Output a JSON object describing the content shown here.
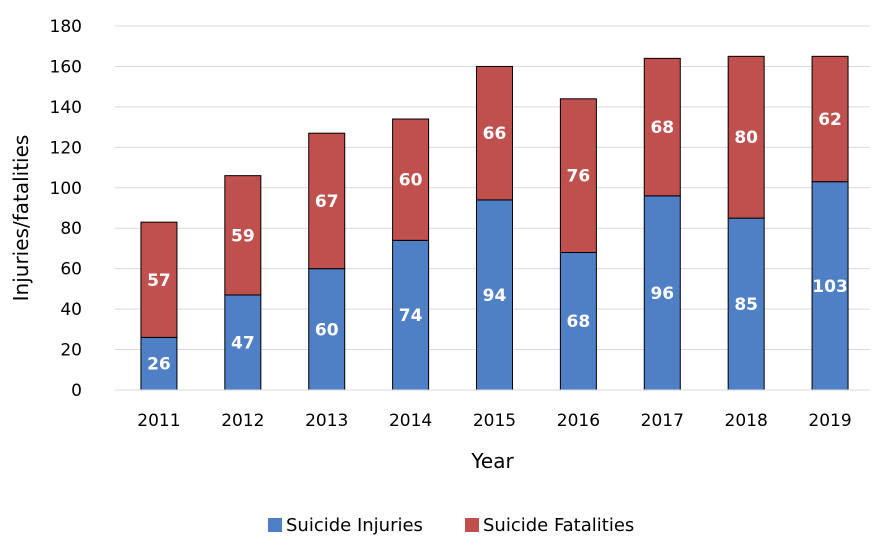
{
  "chart_data": {
    "type": "bar",
    "stacked": true,
    "title": "",
    "xlabel": "Year",
    "ylabel": "Injuries/fatalities",
    "ylim": [
      0,
      180
    ],
    "yticks": [
      0,
      20,
      40,
      60,
      80,
      100,
      120,
      140,
      160,
      180
    ],
    "grid": true,
    "legend": "bottom",
    "categories": [
      "2011",
      "2012",
      "2013",
      "2014",
      "2015",
      "2016",
      "2017",
      "2018",
      "2019"
    ],
    "series": [
      {
        "name": "Suicide Injuries",
        "color": "#4f7fc4",
        "values": [
          26,
          47,
          60,
          74,
          94,
          68,
          96,
          85,
          103
        ]
      },
      {
        "name": "Suicide Fatalities",
        "color": "#c0504d",
        "values": [
          57,
          59,
          67,
          60,
          66,
          76,
          68,
          80,
          62
        ]
      }
    ]
  }
}
